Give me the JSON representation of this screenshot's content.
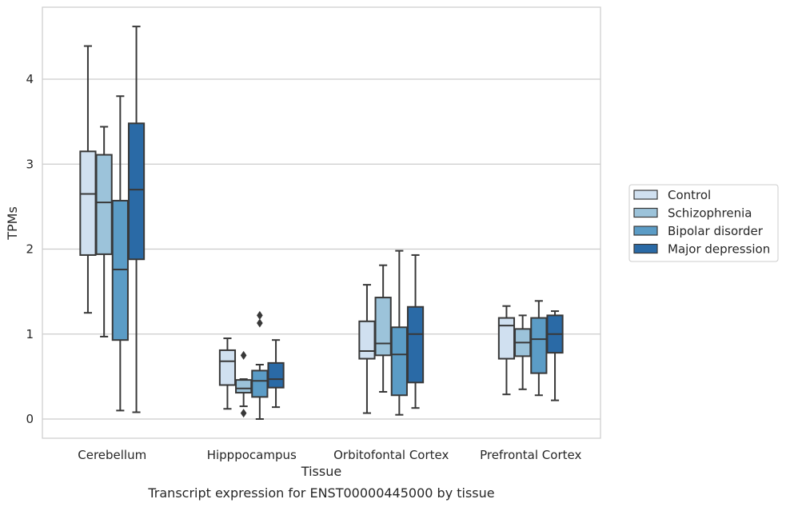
{
  "chart_data": {
    "type": "boxplot",
    "caption": "Transcript expression for ENST00000445000 by tissue",
    "xlabel": "Tissue",
    "ylabel": "TPMs",
    "ylim": [
      -0.22,
      4.85
    ],
    "yticks": [
      0,
      1,
      2,
      3,
      4
    ],
    "grid": true,
    "legend_position": "right-outside",
    "categories": [
      "Cerebellum",
      "Hipppocampus",
      "Orbitofontal Cortex",
      "Prefrontal Cortex"
    ],
    "series": [
      {
        "name": "Control",
        "color": "#d0e0f0",
        "boxes": [
          {
            "min": 1.25,
            "q1": 1.93,
            "median": 2.65,
            "q3": 3.15,
            "max": 4.39,
            "outliers": []
          },
          {
            "min": 0.12,
            "q1": 0.4,
            "median": 0.68,
            "q3": 0.81,
            "max": 0.95,
            "outliers": []
          },
          {
            "min": 0.07,
            "q1": 0.71,
            "median": 0.8,
            "q3": 1.15,
            "max": 1.58,
            "outliers": []
          },
          {
            "min": 0.29,
            "q1": 0.71,
            "median": 1.1,
            "q3": 1.19,
            "max": 1.33,
            "outliers": []
          }
        ]
      },
      {
        "name": "Schizophrenia",
        "color": "#9cc3da",
        "boxes": [
          {
            "min": 0.97,
            "q1": 1.94,
            "median": 2.55,
            "q3": 3.11,
            "max": 3.44,
            "outliers": []
          },
          {
            "min": 0.15,
            "q1": 0.31,
            "median": 0.36,
            "q3": 0.46,
            "max": 0.47,
            "outliers": [
              0.75,
              0.07
            ]
          },
          {
            "min": 0.32,
            "q1": 0.75,
            "median": 0.89,
            "q3": 1.43,
            "max": 1.81,
            "outliers": []
          },
          {
            "min": 0.35,
            "q1": 0.74,
            "median": 0.9,
            "q3": 1.06,
            "max": 1.22,
            "outliers": []
          }
        ]
      },
      {
        "name": "Bipolar disorder",
        "color": "#5b9cc6",
        "boxes": [
          {
            "min": 0.1,
            "q1": 0.93,
            "median": 1.76,
            "q3": 2.57,
            "max": 3.8,
            "outliers": []
          },
          {
            "min": 0.0,
            "q1": 0.26,
            "median": 0.45,
            "q3": 0.57,
            "max": 0.64,
            "outliers": [
              1.13,
              1.22
            ]
          },
          {
            "min": 0.05,
            "q1": 0.28,
            "median": 0.76,
            "q3": 1.08,
            "max": 1.98,
            "outliers": []
          },
          {
            "min": 0.28,
            "q1": 0.54,
            "median": 0.94,
            "q3": 1.19,
            "max": 1.39,
            "outliers": []
          }
        ]
      },
      {
        "name": "Major depression",
        "color": "#2a6aa6",
        "boxes": [
          {
            "min": 0.08,
            "q1": 1.88,
            "median": 2.7,
            "q3": 3.48,
            "max": 4.62,
            "outliers": []
          },
          {
            "min": 0.14,
            "q1": 0.37,
            "median": 0.47,
            "q3": 0.66,
            "max": 0.93,
            "outliers": []
          },
          {
            "min": 0.13,
            "q1": 0.43,
            "median": 1.0,
            "q3": 1.32,
            "max": 1.93,
            "outliers": []
          },
          {
            "min": 0.22,
            "q1": 0.78,
            "median": 1.0,
            "q3": 1.22,
            "max": 1.27,
            "outliers": []
          }
        ]
      }
    ]
  }
}
